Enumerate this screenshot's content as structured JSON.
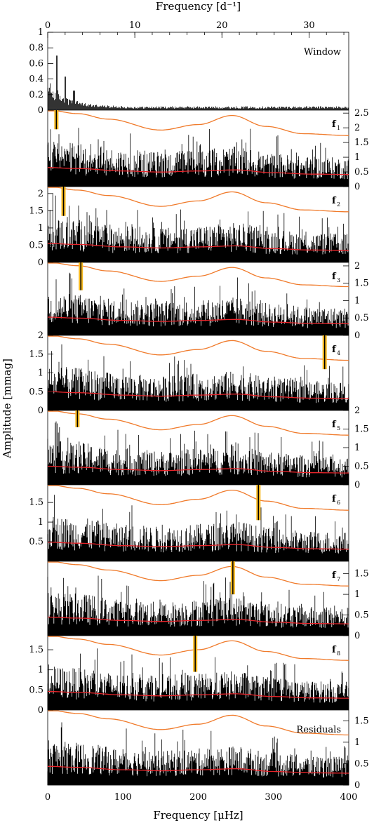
{
  "chart_data": {
    "type": "line",
    "x_bottom": {
      "label": "Frequency [μHz]",
      "range": [
        0,
        400
      ],
      "ticks": [
        "0",
        "100",
        "200",
        "300",
        "400"
      ]
    },
    "x_top": {
      "label": "Frequency [d⁻¹]",
      "range": [
        0,
        34.56
      ],
      "ticks": [
        "0",
        "10",
        "20",
        "30"
      ]
    },
    "y_label": "Amplitude [mmag]",
    "grid": false,
    "colors": {
      "spectrum": "#000000",
      "significance": "#f07a2a",
      "noise": "#e8242a",
      "marker": "#f5b820"
    },
    "panels": [
      {
        "label": "Window",
        "yside": "left",
        "ylim": [
          0,
          1
        ],
        "ticks": [
          "0",
          "0.2",
          "0.4",
          "0.6",
          "0.8",
          "1"
        ],
        "curves": false,
        "marker": null
      },
      {
        "label": "f",
        "sub": "1",
        "yside": "right",
        "ylim": [
          0,
          2.6
        ],
        "ticks": [
          "0",
          "0.5",
          "1",
          "1.5",
          "2",
          "2.5"
        ],
        "curves": true,
        "marker": 11.5,
        "marker_range": [
          1.95,
          2.6
        ]
      },
      {
        "label": "f",
        "sub": "2",
        "yside": "left",
        "ylim": [
          0,
          2.2
        ],
        "ticks": [
          "0",
          "0.5",
          "1",
          "1.5",
          "2"
        ],
        "curves": true,
        "marker": 21.0,
        "marker_range": [
          1.35,
          2.2
        ]
      },
      {
        "label": "f",
        "sub": "3",
        "yside": "right",
        "ylim": [
          0,
          2.1
        ],
        "ticks": [
          "0",
          "0.5",
          "1",
          "1.5",
          "2"
        ],
        "curves": true,
        "marker": 44.0,
        "marker_range": [
          1.3,
          2.1
        ]
      },
      {
        "label": "f",
        "sub": "4",
        "yside": "left",
        "ylim": [
          0,
          2.0
        ],
        "ticks": [
          "0",
          "0.5",
          "1",
          "1.5",
          "2"
        ],
        "curves": true,
        "marker": 368.0,
        "marker_range": [
          1.1,
          2.0
        ]
      },
      {
        "label": "f",
        "sub": "5",
        "yside": "right",
        "ylim": [
          0,
          2.0
        ],
        "ticks": [
          "0",
          "0.5",
          "1",
          "1.5",
          "2"
        ],
        "curves": true,
        "marker": 39.5,
        "marker_range": [
          1.55,
          2.0
        ]
      },
      {
        "label": "f",
        "sub": "6",
        "yside": "left",
        "ylim": [
          0,
          1.95
        ],
        "ticks": [
          "0.5",
          "1",
          "1.5"
        ],
        "curves": true,
        "marker": 280.0,
        "marker_range": [
          1.05,
          1.95
        ]
      },
      {
        "label": "f",
        "sub": "7",
        "yside": "right",
        "ylim": [
          0,
          1.8
        ],
        "ticks": [
          "0",
          "0.5",
          "1",
          "1.5"
        ],
        "curves": true,
        "marker": 246.0,
        "marker_range": [
          1.0,
          1.8
        ]
      },
      {
        "label": "f",
        "sub": "8",
        "yside": "left",
        "ylim": [
          0,
          1.85
        ],
        "ticks": [
          "0",
          "0.5",
          "1",
          "1.5"
        ],
        "curves": true,
        "marker": 196.0,
        "marker_range": [
          0.95,
          1.85
        ]
      },
      {
        "label": "Residuals",
        "yside": "right",
        "ylim": [
          0,
          1.75
        ],
        "ticks": [
          "0",
          "0.5",
          "1",
          "1.5"
        ],
        "curves": true,
        "marker": null
      }
    ],
    "significance_curve": {
      "x": [
        0,
        40,
        80,
        150,
        200,
        245,
        290,
        340,
        400
      ],
      "y": [
        2.1,
        2.0,
        1.85,
        1.55,
        1.7,
        1.95,
        1.65,
        1.45,
        1.4
      ]
    },
    "noise_curve": {
      "x": [
        0,
        40,
        100,
        150,
        200,
        250,
        300,
        350,
        400
      ],
      "y": [
        0.55,
        0.52,
        0.45,
        0.42,
        0.45,
        0.48,
        0.4,
        0.36,
        0.35
      ]
    }
  }
}
